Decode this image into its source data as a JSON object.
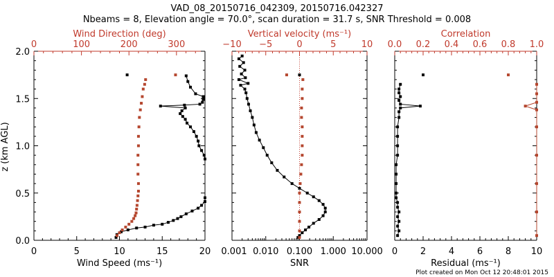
{
  "header": {
    "title_line1": "VAD_08_20150716_042309, 20150716.042327",
    "title_line2": "Nbeams = 8, Elevation angle = 70.0°, scan duration = 31.7 s, SNR Threshold = 0.008"
  },
  "footer": {
    "plot_created": "Plot created on Mon Oct 12 20:48:01 2015"
  },
  "colors": {
    "primary": "#000000",
    "secondary": "#c0392b",
    "marker_red": "#b5472f"
  },
  "chart_data": [
    {
      "type": "line",
      "panel": "left",
      "ylabel": "z (km AGL)",
      "ylim": [
        0,
        2.0
      ],
      "yticks": [
        "0.0",
        "0.5",
        "1.0",
        "1.5",
        "2.0"
      ],
      "bottom_axis": {
        "label": "Wind Speed (ms⁻¹)",
        "range": [
          0,
          20
        ],
        "ticks": [
          "0",
          "5",
          "10",
          "15",
          "20"
        ]
      },
      "top_axis": {
        "label": "Wind Direction (deg)",
        "range": [
          0,
          360
        ],
        "ticks": [
          "0",
          "100",
          "200",
          "300"
        ]
      },
      "series": [
        {
          "name": "Wind Speed",
          "axis": "bottom",
          "color": "#000000",
          "points": [
            [
              9.6,
              0.03
            ],
            [
              9.7,
              0.06
            ],
            [
              10.2,
              0.09
            ],
            [
              11.0,
              0.11
            ],
            [
              12.0,
              0.13
            ],
            [
              13.0,
              0.14
            ],
            [
              14.0,
              0.16
            ],
            [
              15.0,
              0.17
            ],
            [
              15.7,
              0.19
            ],
            [
              16.3,
              0.21
            ],
            [
              16.8,
              0.23
            ],
            [
              17.2,
              0.25
            ],
            [
              17.8,
              0.28
            ],
            [
              18.5,
              0.31
            ],
            [
              19.2,
              0.34
            ],
            [
              19.6,
              0.37
            ],
            [
              20.0,
              0.41
            ],
            [
              20.0,
              0.45
            ]
          ]
        },
        {
          "name": "Wind Speed (upper)",
          "axis": "bottom",
          "color": "#000000",
          "points": [
            [
              20.0,
              0.86
            ],
            [
              19.9,
              0.9
            ],
            [
              19.6,
              0.95
            ],
            [
              19.3,
              1.0
            ],
            [
              19.2,
              1.05
            ],
            [
              19.0,
              1.1
            ],
            [
              18.7,
              1.15
            ],
            [
              18.3,
              1.2
            ],
            [
              17.9,
              1.24
            ],
            [
              17.7,
              1.28
            ],
            [
              17.4,
              1.31
            ],
            [
              17.1,
              1.34
            ],
            [
              17.3,
              1.37
            ],
            [
              17.7,
              1.4
            ],
            [
              14.8,
              1.42
            ],
            [
              17.6,
              1.43
            ],
            [
              19.4,
              1.44
            ],
            [
              19.7,
              1.46
            ],
            [
              19.8,
              1.49
            ],
            [
              19.8,
              1.52
            ],
            [
              18.9,
              1.55
            ],
            [
              18.3,
              1.62
            ],
            [
              18.0,
              1.68
            ],
            [
              17.8,
              1.74
            ]
          ]
        },
        {
          "name": "Wind Direction",
          "axis": "top",
          "color": "#b5472f",
          "points": [
            [
              175,
              0.05
            ],
            [
              180,
              0.08
            ],
            [
              186,
              0.11
            ],
            [
              193,
              0.14
            ],
            [
              200,
              0.17
            ],
            [
              206,
              0.2
            ],
            [
              210,
              0.23
            ],
            [
              213,
              0.26
            ],
            [
              215,
              0.29
            ],
            [
              216,
              0.33
            ],
            [
              217,
              0.37
            ],
            [
              218,
              0.42
            ],
            [
              219,
              0.47
            ],
            [
              220,
              0.52
            ],
            [
              220,
              0.6
            ],
            [
              219,
              0.7
            ],
            [
              219,
              0.8
            ],
            [
              219,
              0.9
            ],
            [
              220,
              1.0
            ],
            [
              220,
              1.1
            ],
            [
              221,
              1.2
            ],
            [
              222,
              1.3
            ],
            [
              224,
              1.38
            ],
            [
              226,
              1.45
            ],
            [
              228,
              1.52
            ],
            [
              230,
              1.6
            ],
            [
              233,
              1.65
            ],
            [
              235,
              1.7
            ]
          ]
        }
      ],
      "isolated_points": [
        {
          "series": "Wind Speed",
          "axis": "bottom",
          "x": 10.9,
          "y": 1.75
        },
        {
          "series": "Wind Direction",
          "axis": "top",
          "x": 298,
          "y": 1.75
        }
      ]
    },
    {
      "type": "line",
      "panel": "middle",
      "bottom_axis": {
        "label": "SNR",
        "scale": "log",
        "range": [
          0.001,
          10
        ],
        "ticks": [
          "0.001",
          "0.010",
          "0.100",
          "1.000",
          "10.000"
        ]
      },
      "top_axis": {
        "label": "Vertical velocity (ms⁻¹)",
        "range": [
          -10,
          10
        ],
        "ticks": [
          "−10",
          "−5",
          "0",
          "5",
          "10"
        ]
      },
      "series": [
        {
          "name": "SNR",
          "axis": "bottom",
          "color": "#000000",
          "points": [
            [
              0.09,
              0.03
            ],
            [
              0.1,
              0.05
            ],
            [
              0.12,
              0.08
            ],
            [
              0.15,
              0.11
            ],
            [
              0.19,
              0.14
            ],
            [
              0.26,
              0.18
            ],
            [
              0.38,
              0.22
            ],
            [
              0.5,
              0.26
            ],
            [
              0.58,
              0.3
            ],
            [
              0.58,
              0.34
            ],
            [
              0.5,
              0.38
            ],
            [
              0.38,
              0.42
            ],
            [
              0.26,
              0.46
            ],
            [
              0.17,
              0.5
            ],
            [
              0.1,
              0.55
            ],
            [
              0.06,
              0.6
            ],
            [
              0.035,
              0.67
            ],
            [
              0.022,
              0.74
            ],
            [
              0.015,
              0.82
            ],
            [
              0.011,
              0.9
            ],
            [
              0.0085,
              0.98
            ],
            [
              0.0065,
              1.06
            ],
            [
              0.0052,
              1.14
            ],
            [
              0.0045,
              1.22
            ],
            [
              0.004,
              1.3
            ],
            [
              0.0035,
              1.37
            ],
            [
              0.0031,
              1.44
            ],
            [
              0.0028,
              1.5
            ],
            [
              0.0026,
              1.56
            ],
            [
              0.0024,
              1.6
            ],
            [
              0.0018,
              1.64
            ],
            [
              0.003,
              1.66
            ],
            [
              0.0016,
              1.7
            ],
            [
              0.0025,
              1.72
            ],
            [
              0.0019,
              1.76
            ],
            [
              0.0024,
              1.8
            ],
            [
              0.0017,
              1.84
            ],
            [
              0.0022,
              1.88
            ],
            [
              0.0016,
              1.92
            ],
            [
              0.002,
              1.95
            ]
          ]
        },
        {
          "name": "Vertical velocity",
          "axis": "top",
          "color": "#b5472f",
          "points": [
            [
              0.0,
              0.03
            ],
            [
              0.0,
              0.1
            ],
            [
              0.0,
              0.2
            ],
            [
              0.0,
              0.3
            ],
            [
              0.0,
              0.4
            ],
            [
              0.0,
              0.5
            ],
            [
              0.1,
              0.6
            ],
            [
              0.2,
              0.7
            ],
            [
              0.3,
              0.8
            ],
            [
              0.4,
              0.9
            ],
            [
              0.4,
              1.0
            ],
            [
              0.4,
              1.1
            ],
            [
              0.4,
              1.2
            ],
            [
              0.3,
              1.3
            ],
            [
              0.3,
              1.4
            ],
            [
              0.4,
              1.5
            ],
            [
              0.4,
              1.6
            ],
            [
              0.5,
              1.7
            ]
          ]
        }
      ],
      "isolated_points": [
        {
          "series": "SNR",
          "axis": "bottom",
          "x": 0.1,
          "y": 1.75
        },
        {
          "series": "Vertical velocity",
          "axis": "top",
          "x": -1.9,
          "y": 1.75
        }
      ],
      "reference_line": {
        "axis": "top",
        "x": 0,
        "style": "dotted"
      }
    },
    {
      "type": "line",
      "panel": "right",
      "bottom_axis": {
        "label": "Residual (ms⁻¹)",
        "range": [
          0,
          10
        ],
        "ticks": [
          "0",
          "2",
          "4",
          "6",
          "8",
          "10"
        ]
      },
      "top_axis": {
        "label": "Correlation",
        "range": [
          0,
          1.0
        ],
        "ticks": [
          "0.0",
          "0.2",
          "0.4",
          "0.6",
          "0.8",
          "1.0"
        ]
      },
      "series": [
        {
          "name": "Residual",
          "axis": "bottom",
          "color": "#000000",
          "points": [
            [
              0.2,
              0.05
            ],
            [
              0.3,
              0.1
            ],
            [
              0.2,
              0.15
            ],
            [
              0.3,
              0.2
            ],
            [
              0.2,
              0.25
            ],
            [
              0.3,
              0.3
            ],
            [
              0.2,
              0.35
            ],
            [
              0.2,
              0.4
            ],
            [
              0.1,
              0.45
            ],
            [
              0.1,
              0.5
            ],
            [
              0.1,
              0.6
            ],
            [
              0.1,
              0.7
            ],
            [
              0.1,
              0.8
            ],
            [
              0.2,
              0.9
            ],
            [
              0.2,
              1.0
            ],
            [
              0.2,
              1.1
            ],
            [
              0.2,
              1.2
            ],
            [
              0.3,
              1.3
            ],
            [
              0.3,
              1.36
            ],
            [
              0.4,
              1.4
            ],
            [
              1.8,
              1.42
            ],
            [
              0.4,
              1.44
            ],
            [
              0.3,
              1.48
            ],
            [
              0.4,
              1.52
            ],
            [
              0.3,
              1.56
            ],
            [
              0.3,
              1.6
            ],
            [
              0.4,
              1.65
            ]
          ]
        },
        {
          "name": "Correlation",
          "axis": "top",
          "color": "#b5472f",
          "points": [
            [
              1.0,
              0.05
            ],
            [
              1.0,
              0.3
            ],
            [
              1.0,
              0.6
            ],
            [
              1.0,
              0.9
            ],
            [
              1.0,
              1.2
            ],
            [
              1.0,
              1.38
            ],
            [
              0.92,
              1.42
            ],
            [
              1.0,
              1.46
            ],
            [
              1.0,
              1.55
            ],
            [
              1.0,
              1.65
            ]
          ]
        }
      ],
      "isolated_points": [
        {
          "series": "Residual",
          "axis": "bottom",
          "x": 2.0,
          "y": 1.75
        },
        {
          "series": "Correlation",
          "axis": "top",
          "x": 0.8,
          "y": 1.75
        }
      ]
    }
  ]
}
